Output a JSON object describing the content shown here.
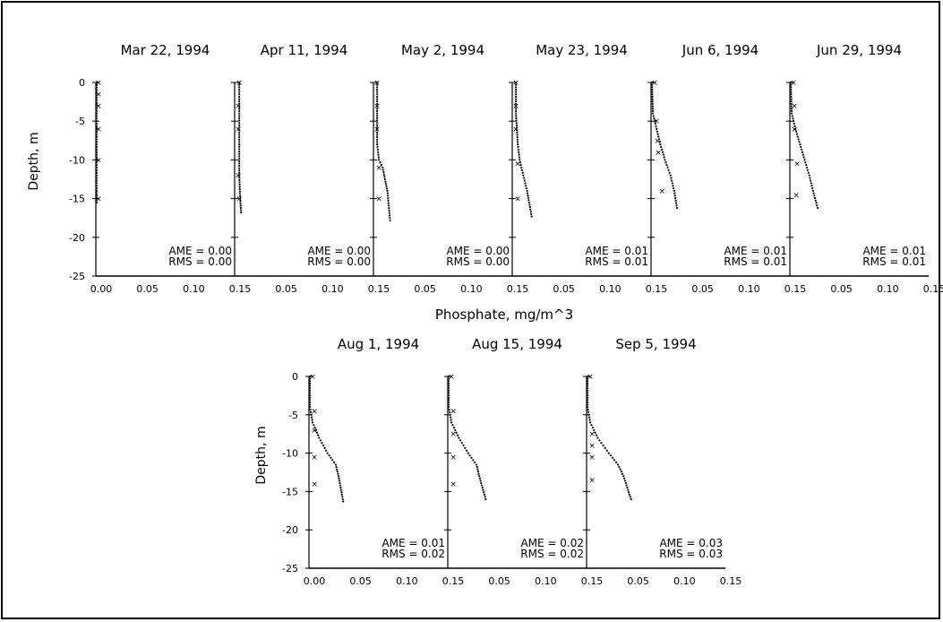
{
  "chart_data": {
    "type": "scatter",
    "x_ticks": [
      "0.00",
      "0.05",
      "0.10",
      "0.15"
    ],
    "y_ticks": [
      "0",
      "-5",
      "-10",
      "-15",
      "-20",
      "-25"
    ],
    "xlim": [
      0,
      0.15
    ],
    "ylim": [
      -25,
      0
    ],
    "xlabel": "Phosphate, mg/m^3",
    "ylabel": "Depth, m",
    "panels": [
      {
        "title": "Mar 22, 1994",
        "ame": "AME = 0.00",
        "rms": "RMS = 0.00",
        "model": [
          [
            0.001,
            0
          ],
          [
            0.001,
            -2
          ],
          [
            0.001,
            -4
          ],
          [
            0.001,
            -6
          ],
          [
            0.001,
            -8
          ],
          [
            0.001,
            -10
          ],
          [
            0.001,
            -12
          ],
          [
            0.001,
            -14
          ],
          [
            0.001,
            -15.5
          ]
        ],
        "obs": [
          [
            0.001,
            0
          ],
          [
            0.001,
            -1.5
          ],
          [
            0.001,
            -3
          ],
          [
            0.001,
            -6
          ],
          [
            0.001,
            -10
          ],
          [
            0.001,
            -15
          ]
        ]
      },
      {
        "title": "Apr 11, 1994",
        "ame": "AME = 0.00",
        "rms": "RMS = 0.00",
        "model": [
          [
            0.005,
            0
          ],
          [
            0.005,
            -4
          ],
          [
            0.005,
            -8
          ],
          [
            0.005,
            -12
          ],
          [
            0.006,
            -15
          ],
          [
            0.007,
            -16.8
          ]
        ],
        "obs": [
          [
            0.003,
            0
          ],
          [
            0.002,
            -3
          ],
          [
            0.002,
            -6
          ],
          [
            0.002,
            -12
          ],
          [
            0.003,
            -15
          ]
        ]
      },
      {
        "title": "May 2, 1994",
        "ame": "AME = 0.00",
        "rms": "RMS = 0.00",
        "model": [
          [
            0.004,
            0
          ],
          [
            0.004,
            -4
          ],
          [
            0.004,
            -8
          ],
          [
            0.006,
            -10
          ],
          [
            0.01,
            -11
          ],
          [
            0.015,
            -14
          ],
          [
            0.018,
            -17.8
          ]
        ],
        "obs": [
          [
            0.002,
            0
          ],
          [
            0.002,
            -3
          ],
          [
            0.002,
            -6
          ],
          [
            0.004,
            -11
          ],
          [
            0.004,
            -15
          ]
        ]
      },
      {
        "title": "May 23, 1994",
        "ame": "AME = 0.01",
        "rms": "RMS = 0.01",
        "model": [
          [
            0.004,
            0
          ],
          [
            0.004,
            -4
          ],
          [
            0.006,
            -8
          ],
          [
            0.008,
            -10
          ],
          [
            0.012,
            -12
          ],
          [
            0.016,
            -14
          ],
          [
            0.021,
            -17.3
          ]
        ],
        "obs": [
          [
            0.002,
            0
          ],
          [
            0.002,
            -3
          ],
          [
            0.002,
            -6
          ],
          [
            0.004,
            -10.5
          ],
          [
            0.004,
            -15
          ]
        ]
      },
      {
        "title": "Jun 6, 1994",
        "ame": "AME = 0.01",
        "rms": "RMS = 0.01",
        "model": [
          [
            0.001,
            0
          ],
          [
            0.002,
            -4
          ],
          [
            0.006,
            -6
          ],
          [
            0.01,
            -8
          ],
          [
            0.015,
            -10
          ],
          [
            0.021,
            -12
          ],
          [
            0.025,
            -14
          ],
          [
            0.028,
            -16.2
          ]
        ],
        "obs": [
          [
            0.002,
            0
          ],
          [
            0.004,
            -5
          ],
          [
            0.005,
            -7.5
          ],
          [
            0.006,
            -9
          ],
          [
            0.01,
            -14
          ]
        ]
      },
      {
        "title": "Jun 29, 1994",
        "ame": "AME = 0.01",
        "rms": "RMS = 0.01",
        "model": [
          [
            0.001,
            0
          ],
          [
            0.002,
            -4
          ],
          [
            0.006,
            -6
          ],
          [
            0.011,
            -8
          ],
          [
            0.016,
            -10
          ],
          [
            0.021,
            -12
          ],
          [
            0.025,
            -14
          ],
          [
            0.03,
            -16.2
          ]
        ],
        "obs": [
          [
            0.002,
            0
          ],
          [
            0.003,
            -3
          ],
          [
            0.003,
            -6
          ],
          [
            0.006,
            -10.5
          ],
          [
            0.005,
            -14.5
          ]
        ]
      },
      {
        "title": "Aug 1, 1994",
        "ame": "AME = 0.01",
        "rms": "RMS = 0.02",
        "model": [
          [
            0.001,
            0
          ],
          [
            0.001,
            -4
          ],
          [
            0.004,
            -6
          ],
          [
            0.011,
            -8
          ],
          [
            0.02,
            -10
          ],
          [
            0.029,
            -11.5
          ],
          [
            0.032,
            -13
          ],
          [
            0.037,
            -16.3
          ]
        ],
        "obs": [
          [
            0.002,
            0
          ],
          [
            0.004,
            -4.5
          ],
          [
            0.004,
            -7
          ],
          [
            0.004,
            -10.5
          ],
          [
            0.004,
            -14
          ]
        ]
      },
      {
        "title": "Aug 15, 1994",
        "ame": "AME = 0.02",
        "rms": "RMS = 0.02",
        "model": [
          [
            0.001,
            0
          ],
          [
            0.001,
            -4
          ],
          [
            0.004,
            -6
          ],
          [
            0.012,
            -8
          ],
          [
            0.022,
            -10
          ],
          [
            0.031,
            -11.5
          ],
          [
            0.034,
            -13
          ],
          [
            0.041,
            -16
          ]
        ],
        "obs": [
          [
            0.002,
            0
          ],
          [
            0.004,
            -4.5
          ],
          [
            0.004,
            -7.5
          ],
          [
            0.004,
            -10.5
          ],
          [
            0.004,
            -14
          ]
        ]
      },
      {
        "title": "Sep 5, 1994",
        "ame": "AME = 0.03",
        "rms": "RMS = 0.03",
        "model": [
          [
            0.001,
            0
          ],
          [
            0.001,
            -4
          ],
          [
            0.004,
            -6
          ],
          [
            0.012,
            -8
          ],
          [
            0.024,
            -10
          ],
          [
            0.034,
            -11.5
          ],
          [
            0.04,
            -13
          ],
          [
            0.048,
            -16
          ]
        ],
        "obs": [
          [
            0.002,
            0
          ],
          [
            0.004,
            -7.5
          ],
          [
            0.004,
            -9
          ],
          [
            0.004,
            -10.5
          ],
          [
            0.004,
            -13.5
          ]
        ]
      }
    ]
  }
}
